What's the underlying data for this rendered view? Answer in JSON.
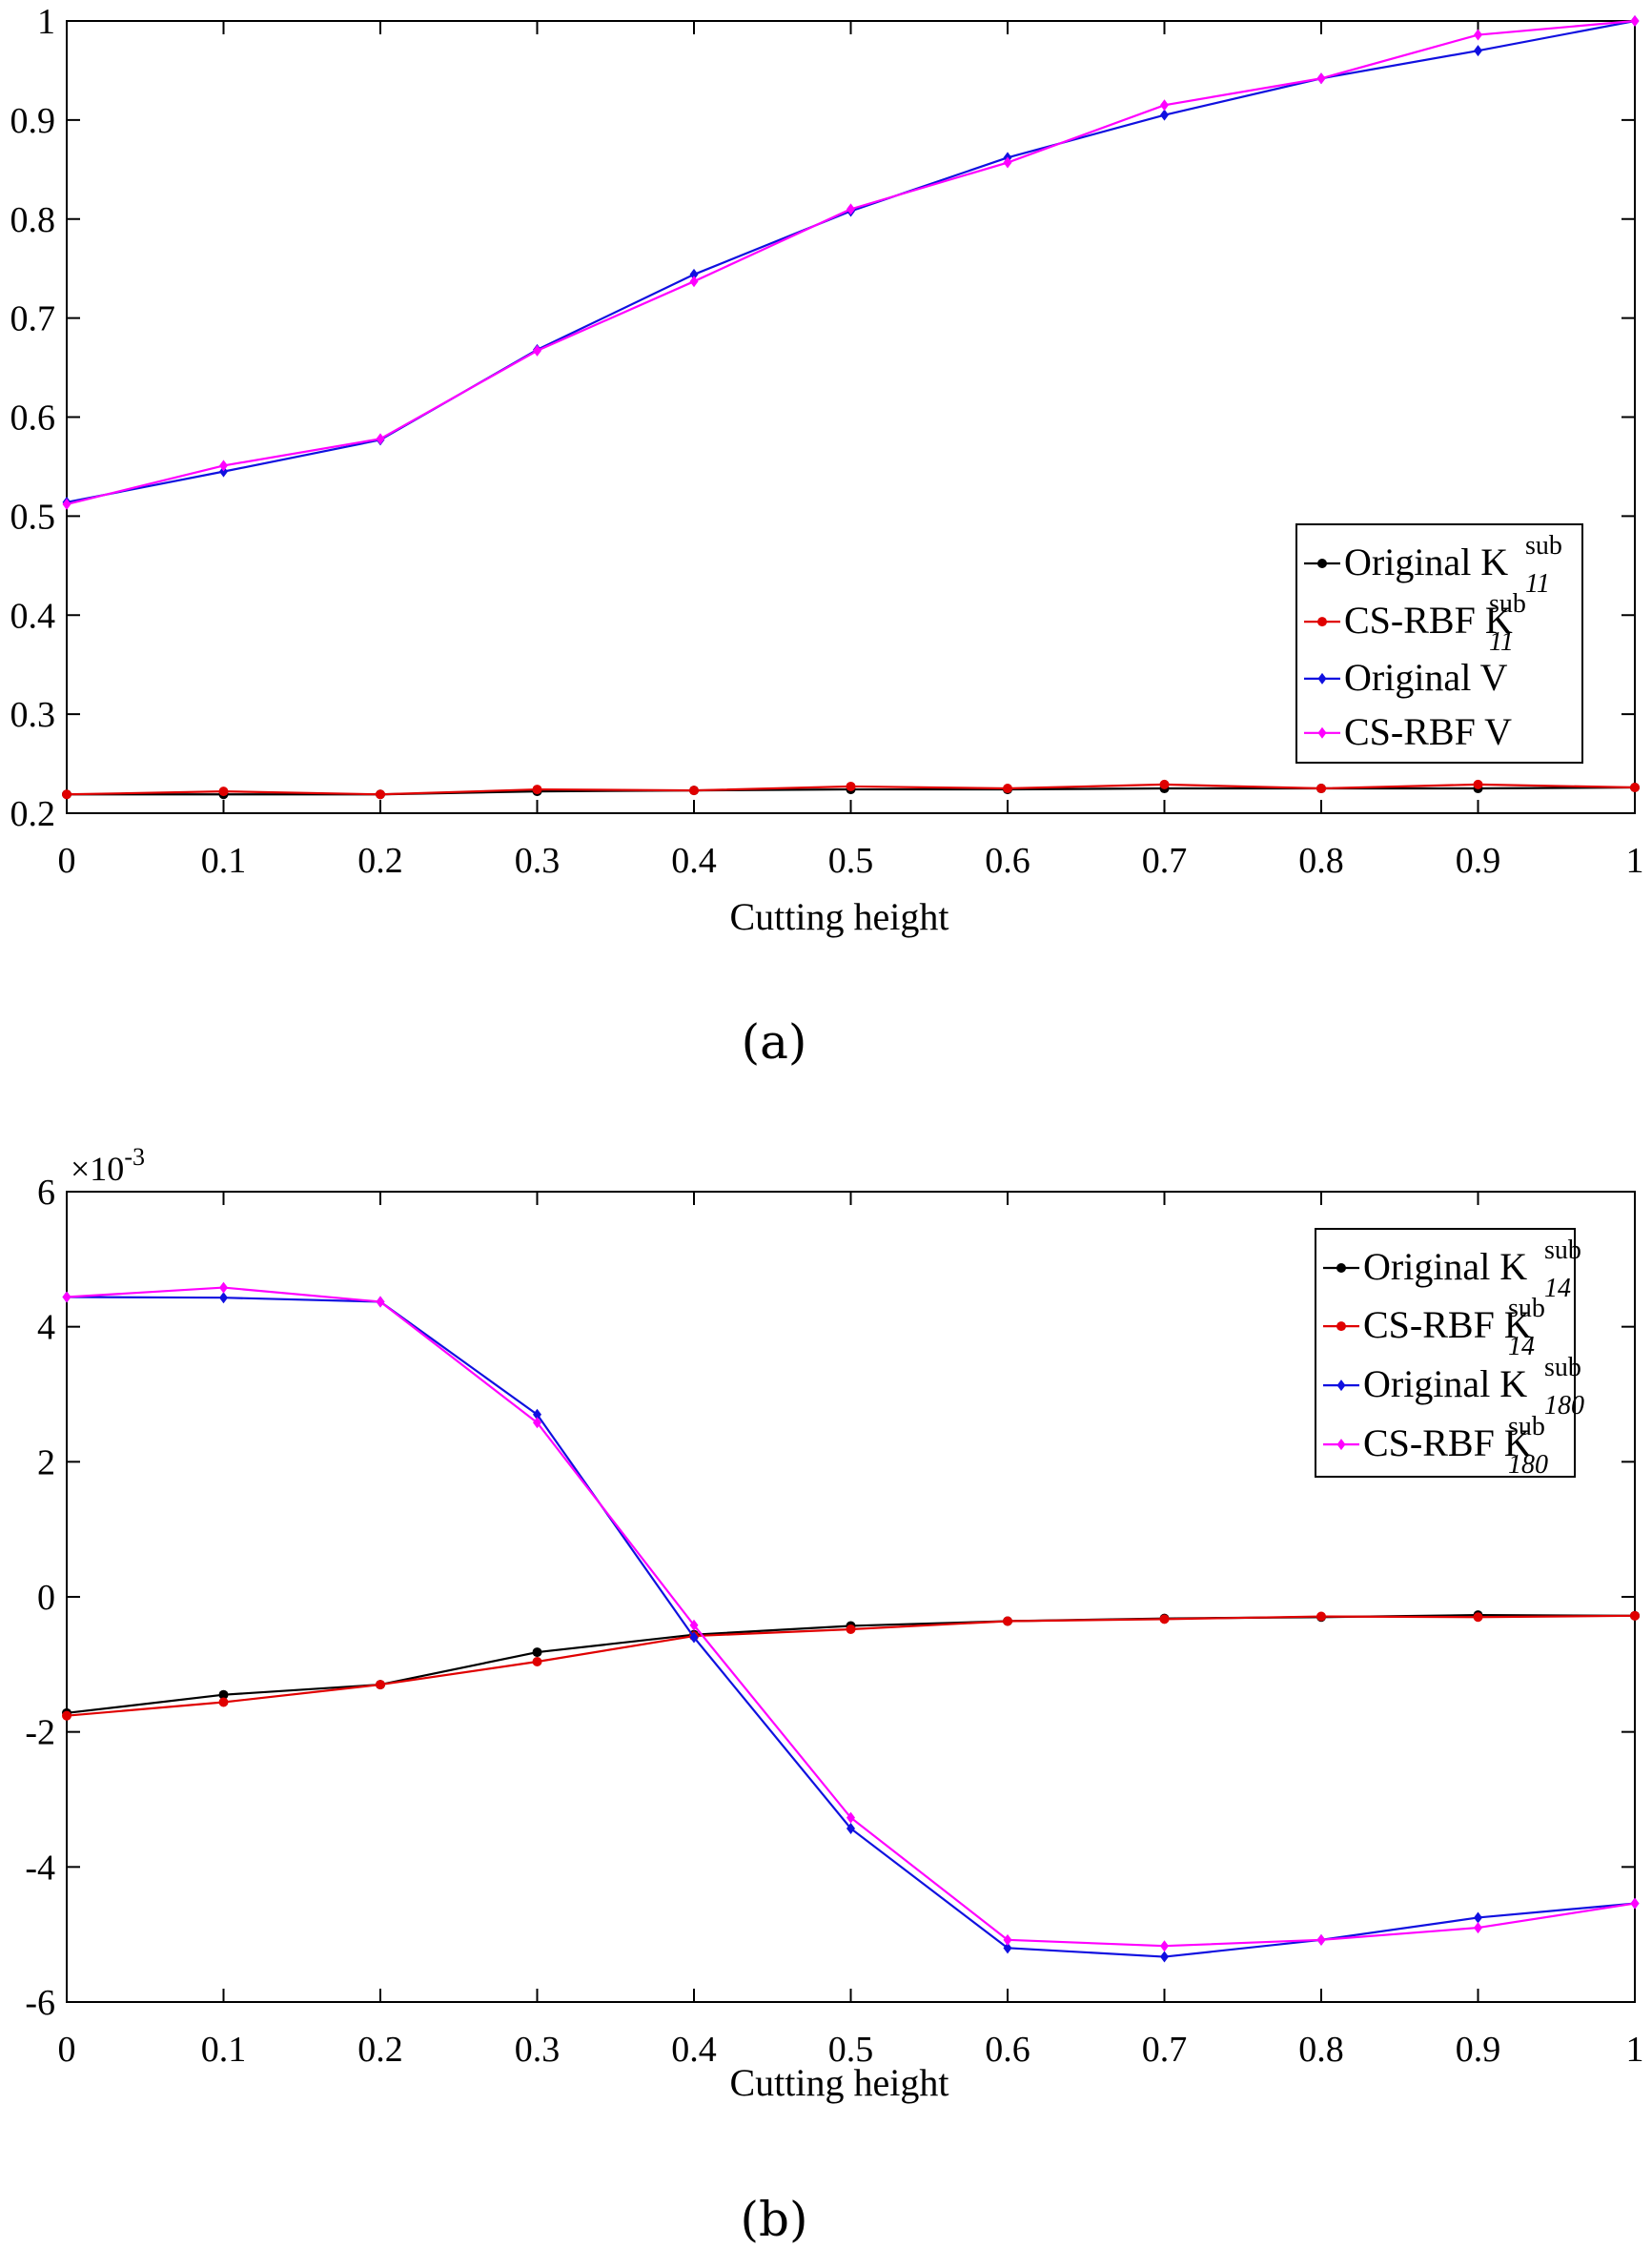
{
  "chart_data": [
    {
      "type": "line",
      "panel_caption": "(a)",
      "xlabel": "Cutting height",
      "ylabel": "",
      "x": [
        0,
        0.1,
        0.2,
        0.3,
        0.4,
        0.5,
        0.6,
        0.7,
        0.8,
        0.9,
        1
      ],
      "xlim": [
        0,
        1
      ],
      "ylim": [
        0.2,
        1
      ],
      "xticks": [
        "0",
        "0.1",
        "0.2",
        "0.3",
        "0.4",
        "0.5",
        "0.6",
        "0.7",
        "0.8",
        "0.9",
        "1"
      ],
      "yticks": [
        {
          "value": 0.2,
          "label": "0.2"
        },
        {
          "value": 0.3,
          "label": "0.3"
        },
        {
          "value": 0.4,
          "label": "0.4"
        },
        {
          "value": 0.5,
          "label": "0.5"
        },
        {
          "value": 0.6,
          "label": "0.6"
        },
        {
          "value": 0.7,
          "label": "0.7"
        },
        {
          "value": 0.8,
          "label": "0.8"
        },
        {
          "value": 0.9,
          "label": "0.9"
        },
        {
          "value": 1,
          "label": "1"
        }
      ],
      "exponent": null,
      "legend_position": "right, lower-middle",
      "series": [
        {
          "name": "Original K",
          "sup": "sub",
          "sub": "11",
          "color": "#000000",
          "marker": "dot",
          "values": [
            0.219,
            0.219,
            0.219,
            0.222,
            0.223,
            0.224,
            0.224,
            0.225,
            0.225,
            0.225,
            0.226
          ]
        },
        {
          "name": "CS-RBF K",
          "sup": "sub",
          "sub": "11",
          "color": "#e00000",
          "marker": "dot",
          "values": [
            0.219,
            0.222,
            0.219,
            0.224,
            0.223,
            0.227,
            0.225,
            0.229,
            0.225,
            0.229,
            0.226
          ]
        },
        {
          "name": "Original V",
          "sup": "",
          "sub": "",
          "color": "#1010e0",
          "marker": "diamond",
          "values": [
            0.514,
            0.545,
            0.577,
            0.668,
            0.744,
            0.808,
            0.862,
            0.905,
            0.942,
            0.97,
            1.0
          ]
        },
        {
          "name": "CS-RBF V",
          "sup": "",
          "sub": "",
          "color": "#ff00ff",
          "marker": "diamond",
          "values": [
            0.512,
            0.551,
            0.578,
            0.667,
            0.737,
            0.81,
            0.857,
            0.915,
            0.942,
            0.986,
            1.0
          ]
        }
      ]
    },
    {
      "type": "line",
      "panel_caption": "(b)",
      "xlabel": "Cutting height",
      "ylabel": "",
      "x": [
        0,
        0.1,
        0.2,
        0.3,
        0.4,
        0.5,
        0.6,
        0.7,
        0.8,
        0.9,
        1
      ],
      "xlim": [
        0,
        1
      ],
      "ylim": [
        -6,
        6
      ],
      "xticks": [
        "0",
        "0.1",
        "0.2",
        "0.3",
        "0.4",
        "0.5",
        "0.6",
        "0.7",
        "0.8",
        "0.9",
        "1"
      ],
      "yticks": [
        {
          "value": -6,
          "label": "-6"
        },
        {
          "value": -4,
          "label": "-4"
        },
        {
          "value": -2,
          "label": "-2"
        },
        {
          "value": 0,
          "label": "0"
        },
        {
          "value": 2,
          "label": "2"
        },
        {
          "value": 4,
          "label": "4"
        },
        {
          "value": 6,
          "label": "6"
        }
      ],
      "exponent": {
        "base": "×10",
        "power": "-3"
      },
      "legend_position": "top-right",
      "series": [
        {
          "name": "Original K",
          "sup": "sub",
          "sub": "14",
          "color": "#000000",
          "marker": "dot",
          "values": [
            -1.72,
            -1.45,
            -1.3,
            -0.82,
            -0.56,
            -0.43,
            -0.36,
            -0.32,
            -0.3,
            -0.27,
            -0.28
          ]
        },
        {
          "name": "CS-RBF K",
          "sup": "sub",
          "sub": "14",
          "color": "#e00000",
          "marker": "dot",
          "values": [
            -1.76,
            -1.56,
            -1.3,
            -0.96,
            -0.58,
            -0.48,
            -0.36,
            -0.33,
            -0.29,
            -0.3,
            -0.28
          ]
        },
        {
          "name": "Original K",
          "sup": "sub",
          "sub": "180",
          "color": "#1010e0",
          "marker": "diamond",
          "values": [
            4.44,
            4.43,
            4.37,
            2.7,
            -0.6,
            -3.43,
            -5.2,
            -5.33,
            -5.08,
            -4.75,
            -4.54
          ]
        },
        {
          "name": "CS-RBF K",
          "sup": "sub",
          "sub": "180",
          "color": "#ff00ff",
          "marker": "diamond",
          "values": [
            4.44,
            4.58,
            4.37,
            2.58,
            -0.42,
            -3.27,
            -5.08,
            -5.17,
            -5.08,
            -4.9,
            -4.54
          ]
        }
      ]
    }
  ]
}
